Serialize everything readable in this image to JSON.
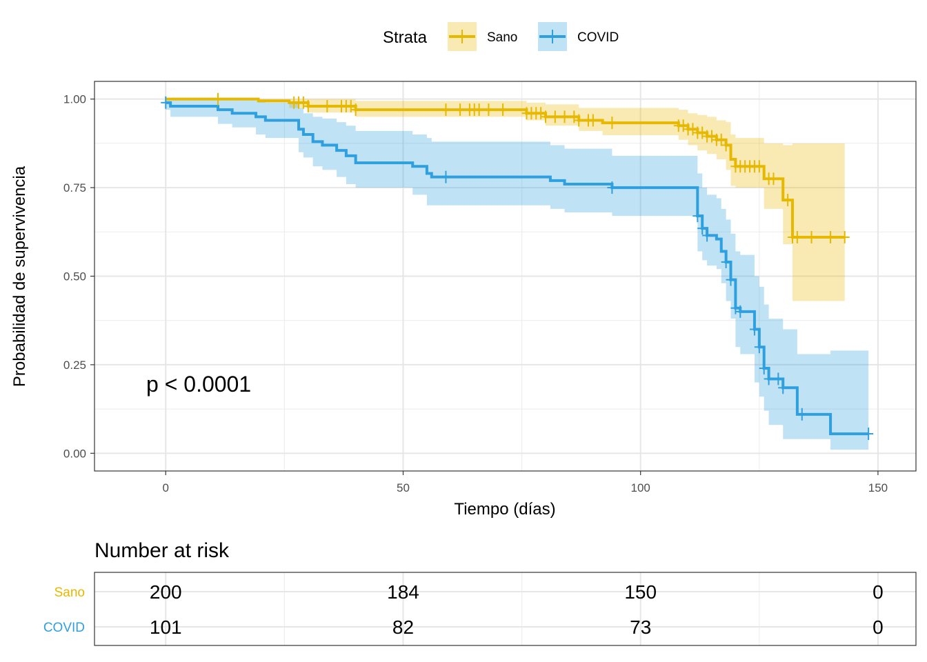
{
  "chart_data": {
    "type": "line",
    "subtype": "kaplan-meier",
    "title": "",
    "xlabel": "Tiempo (días)",
    "ylabel": "Probabilidad de supervivencia",
    "xlim": [
      -15,
      158
    ],
    "ylim": [
      -0.05,
      1.05
    ],
    "x_ticks": [
      0,
      50,
      100,
      150
    ],
    "x_tick_labels": [
      "0",
      "50",
      "100",
      "150"
    ],
    "y_ticks": [
      0,
      0.25,
      0.5,
      0.75,
      1
    ],
    "y_tick_labels": [
      "0.00",
      "0.25",
      "0.50",
      "0.75",
      "1.00"
    ],
    "grid": true,
    "legend": {
      "title": "Strata",
      "position": "top"
    },
    "annotation": "p < 0.0001",
    "series": [
      {
        "name": "Sano",
        "color": "#E7B800",
        "steps": [
          [
            0,
            1.0
          ],
          [
            19.5,
            0.995
          ],
          [
            26,
            0.99
          ],
          [
            30,
            0.98
          ],
          [
            40,
            0.97
          ],
          [
            76,
            0.96
          ],
          [
            80,
            0.95
          ],
          [
            87,
            0.94
          ],
          [
            92,
            0.933
          ],
          [
            108,
            0.925
          ],
          [
            110,
            0.915
          ],
          [
            112,
            0.905
          ],
          [
            114,
            0.895
          ],
          [
            116,
            0.885
          ],
          [
            118,
            0.87
          ],
          [
            119,
            0.83
          ],
          [
            120,
            0.81
          ],
          [
            126,
            0.775
          ],
          [
            130,
            0.715
          ],
          [
            132,
            0.61
          ],
          [
            143,
            0.61
          ]
        ],
        "ci_lower": [
          [
            0,
            1.0
          ],
          [
            19.5,
            0.99
          ],
          [
            26,
            0.975
          ],
          [
            30,
            0.962
          ],
          [
            40,
            0.95
          ],
          [
            76,
            0.94
          ],
          [
            80,
            0.925
          ],
          [
            87,
            0.91
          ],
          [
            92,
            0.898
          ],
          [
            108,
            0.885
          ],
          [
            110,
            0.87
          ],
          [
            112,
            0.855
          ],
          [
            114,
            0.845
          ],
          [
            116,
            0.83
          ],
          [
            118,
            0.8
          ],
          [
            119,
            0.755
          ],
          [
            120,
            0.75
          ],
          [
            126,
            0.69
          ],
          [
            130,
            0.59
          ],
          [
            132,
            0.43
          ],
          [
            143,
            0.43
          ]
        ],
        "ci_upper": [
          [
            0,
            1.0
          ],
          [
            19.5,
            1.0
          ],
          [
            26,
            1.0
          ],
          [
            30,
            1.0
          ],
          [
            40,
            0.995
          ],
          [
            76,
            0.99
          ],
          [
            80,
            0.985
          ],
          [
            87,
            0.975
          ],
          [
            92,
            0.975
          ],
          [
            108,
            0.97
          ],
          [
            110,
            0.96
          ],
          [
            112,
            0.955
          ],
          [
            114,
            0.95
          ],
          [
            116,
            0.94
          ],
          [
            118,
            0.935
          ],
          [
            119,
            0.9
          ],
          [
            120,
            0.89
          ],
          [
            126,
            0.875
          ],
          [
            130,
            0.87
          ],
          [
            132,
            0.875
          ],
          [
            143,
            0.875
          ]
        ],
        "censor_times": [
          11,
          27,
          28,
          29,
          30,
          34,
          37,
          38,
          39,
          40,
          59,
          62,
          64,
          65,
          66,
          68,
          71,
          76,
          77,
          78,
          79,
          80,
          82,
          84,
          86,
          87,
          89,
          90,
          94,
          108,
          109,
          110,
          111,
          112,
          113,
          114,
          115,
          116,
          117,
          118,
          120,
          121,
          122,
          123,
          124,
          125,
          127,
          128,
          131,
          132,
          133,
          136,
          140,
          143
        ]
      },
      {
        "name": "COVID",
        "color": "#2E9FDF",
        "steps": [
          [
            0,
            0.99
          ],
          [
            1,
            0.98
          ],
          [
            11,
            0.97
          ],
          [
            14,
            0.96
          ],
          [
            19,
            0.95
          ],
          [
            21,
            0.94
          ],
          [
            28,
            0.915
          ],
          [
            29,
            0.9
          ],
          [
            31,
            0.88
          ],
          [
            33,
            0.87
          ],
          [
            36,
            0.855
          ],
          [
            38,
            0.84
          ],
          [
            40,
            0.82
          ],
          [
            52,
            0.81
          ],
          [
            55,
            0.79
          ],
          [
            56,
            0.78
          ],
          [
            81,
            0.77
          ],
          [
            84,
            0.76
          ],
          [
            94,
            0.75
          ],
          [
            112,
            0.67
          ],
          [
            113,
            0.635
          ],
          [
            114,
            0.615
          ],
          [
            116,
            0.605
          ],
          [
            117,
            0.57
          ],
          [
            118,
            0.54
          ],
          [
            119,
            0.49
          ],
          [
            120,
            0.41
          ],
          [
            121,
            0.4
          ],
          [
            124,
            0.35
          ],
          [
            125,
            0.3
          ],
          [
            126,
            0.24
          ],
          [
            127,
            0.21
          ],
          [
            130,
            0.185
          ],
          [
            133,
            0.11
          ],
          [
            140,
            0.055
          ],
          [
            148,
            0.055
          ]
        ],
        "ci_lower": [
          [
            0,
            0.97
          ],
          [
            1,
            0.95
          ],
          [
            11,
            0.93
          ],
          [
            14,
            0.92
          ],
          [
            19,
            0.9
          ],
          [
            21,
            0.89
          ],
          [
            28,
            0.85
          ],
          [
            29,
            0.835
          ],
          [
            31,
            0.81
          ],
          [
            33,
            0.8
          ],
          [
            36,
            0.78
          ],
          [
            38,
            0.76
          ],
          [
            40,
            0.75
          ],
          [
            52,
            0.73
          ],
          [
            55,
            0.7
          ],
          [
            56,
            0.7
          ],
          [
            81,
            0.69
          ],
          [
            84,
            0.68
          ],
          [
            94,
            0.67
          ],
          [
            112,
            0.57
          ],
          [
            113,
            0.545
          ],
          [
            114,
            0.53
          ],
          [
            116,
            0.52
          ],
          [
            117,
            0.48
          ],
          [
            118,
            0.43
          ],
          [
            119,
            0.38
          ],
          [
            120,
            0.3
          ],
          [
            121,
            0.28
          ],
          [
            124,
            0.2
          ],
          [
            125,
            0.16
          ],
          [
            126,
            0.12
          ],
          [
            127,
            0.08
          ],
          [
            130,
            0.04
          ],
          [
            133,
            0.04
          ],
          [
            140,
            0.01
          ],
          [
            148,
            0.01
          ]
        ],
        "ci_upper": [
          [
            0,
            1.0
          ],
          [
            1,
            1.0
          ],
          [
            11,
            1.0
          ],
          [
            14,
            1.0
          ],
          [
            19,
            0.995
          ],
          [
            21,
            0.99
          ],
          [
            28,
            0.975
          ],
          [
            29,
            0.96
          ],
          [
            31,
            0.95
          ],
          [
            33,
            0.945
          ],
          [
            36,
            0.935
          ],
          [
            38,
            0.925
          ],
          [
            40,
            0.91
          ],
          [
            52,
            0.9
          ],
          [
            55,
            0.89
          ],
          [
            56,
            0.88
          ],
          [
            81,
            0.87
          ],
          [
            84,
            0.86
          ],
          [
            94,
            0.84
          ],
          [
            112,
            0.79
          ],
          [
            113,
            0.75
          ],
          [
            114,
            0.73
          ],
          [
            116,
            0.72
          ],
          [
            117,
            0.69
          ],
          [
            118,
            0.66
          ],
          [
            119,
            0.62
          ],
          [
            120,
            0.57
          ],
          [
            121,
            0.56
          ],
          [
            124,
            0.5
          ],
          [
            125,
            0.47
          ],
          [
            126,
            0.42
          ],
          [
            127,
            0.38
          ],
          [
            130,
            0.35
          ],
          [
            133,
            0.28
          ],
          [
            140,
            0.29
          ],
          [
            148,
            0.29
          ]
        ],
        "censor_times": [
          0,
          59,
          94,
          112,
          113,
          114,
          118,
          119,
          120,
          121,
          124,
          125,
          126,
          127,
          129,
          130,
          134,
          148
        ]
      }
    ],
    "risk_table": {
      "title": "Number at risk",
      "times": [
        0,
        50,
        100,
        150
      ],
      "rows": [
        {
          "name": "Sano",
          "color": "#E7B800",
          "values": [
            "200",
            "184",
            "150",
            "0"
          ]
        },
        {
          "name": "COVID",
          "color": "#2E9FDF",
          "values": [
            "101",
            "82",
            "73",
            "0"
          ]
        }
      ]
    }
  }
}
